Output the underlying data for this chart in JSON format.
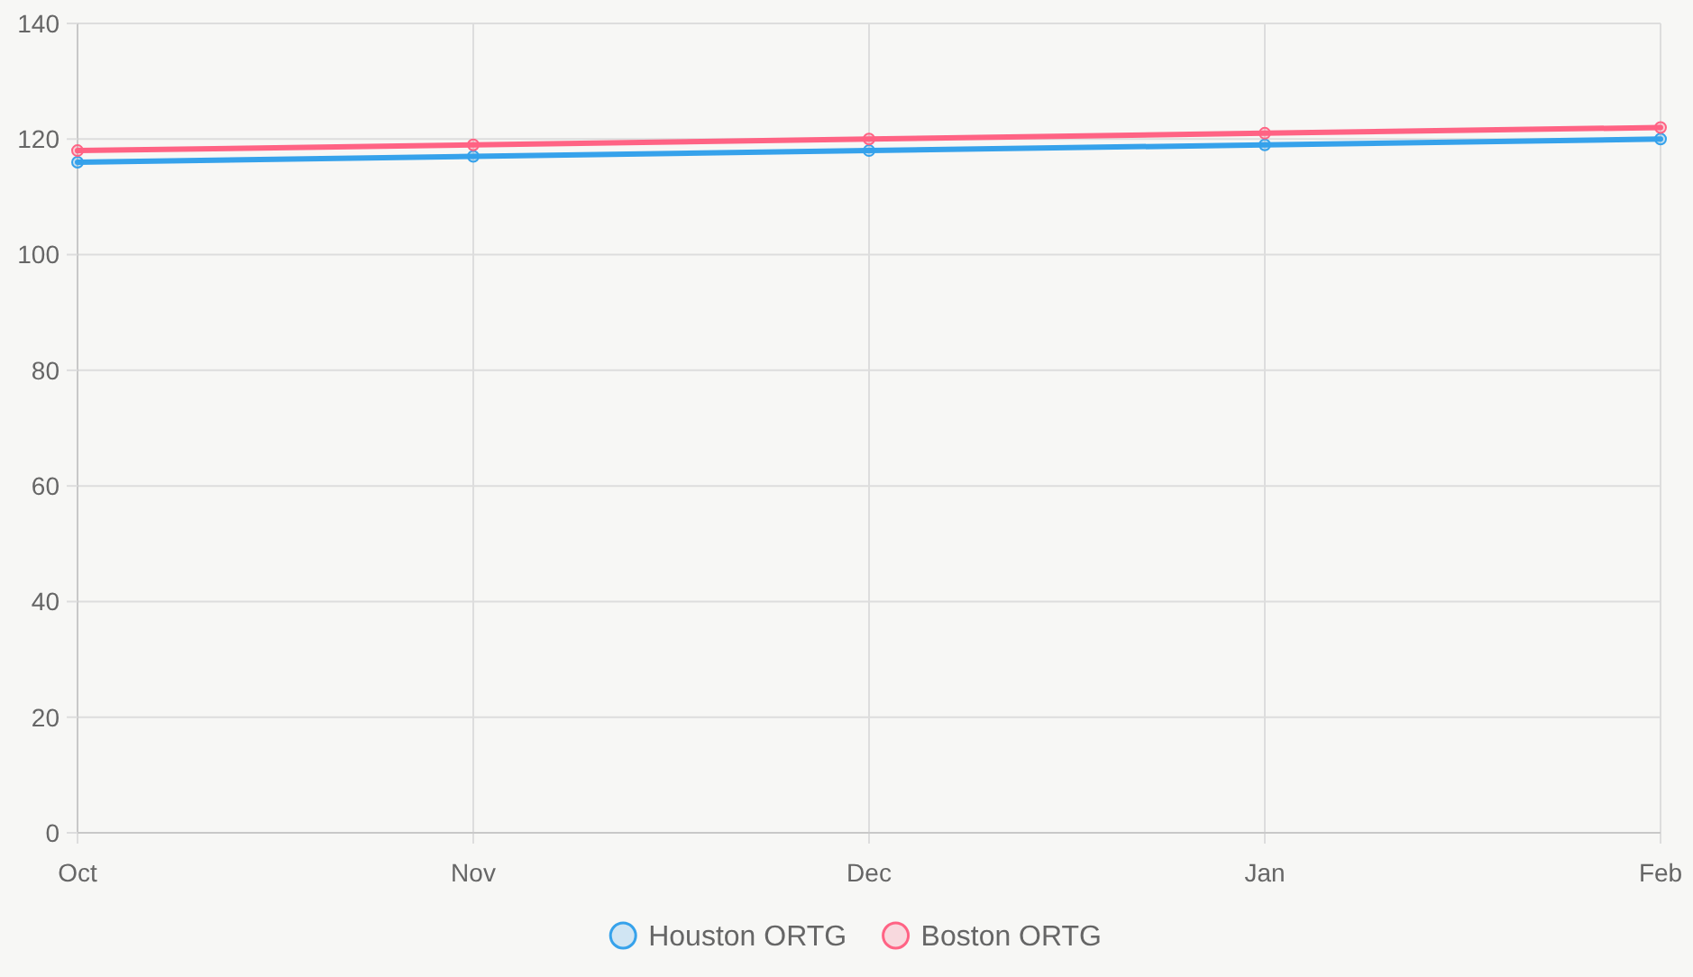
{
  "chart_data": {
    "type": "line",
    "categories": [
      "Oct",
      "Nov",
      "Dec",
      "Jan",
      "Feb"
    ],
    "series": [
      {
        "name": "Houston ORTG",
        "color": "#36a2eb",
        "values": [
          116,
          117,
          118,
          119,
          120
        ]
      },
      {
        "name": "Boston ORTG",
        "color": "#ff6384",
        "values": [
          118,
          119,
          120,
          121,
          122
        ]
      }
    ],
    "ylim": [
      0,
      140
    ],
    "yticks": [
      0,
      20,
      40,
      60,
      80,
      100,
      120,
      140
    ],
    "grid": true,
    "legend": "bottom",
    "marker": "circle"
  }
}
